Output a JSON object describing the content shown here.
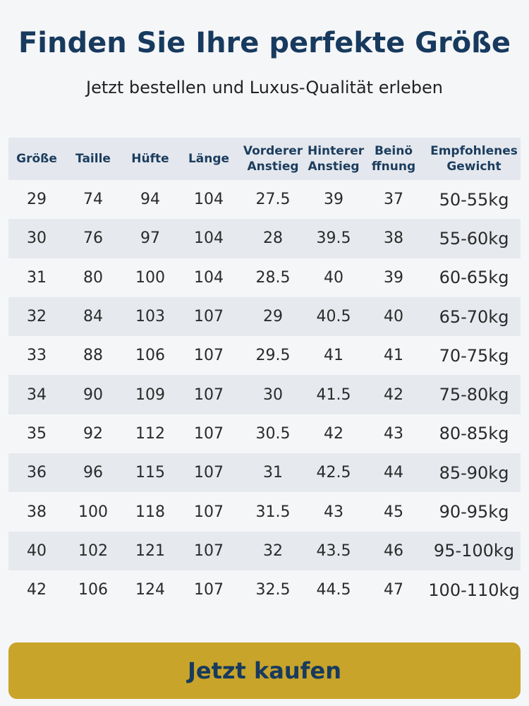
{
  "header": {
    "title": "Finden Sie Ihre perfekte Größe",
    "subtitle": "Jetzt bestellen und Luxus-Qualität erleben"
  },
  "table": {
    "columns": [
      [
        "Größe"
      ],
      [
        "Taille"
      ],
      [
        "Hüfte"
      ],
      [
        "Länge"
      ],
      [
        "Vorderer",
        "Anstieg"
      ],
      [
        "Hinterer",
        "Anstieg"
      ],
      [
        "Beinö",
        "ffnung"
      ],
      [
        "Empfohlenes",
        "Gewicht"
      ]
    ],
    "rows": [
      [
        "29",
        "74",
        "94",
        "104",
        "27.5",
        "39",
        "37",
        "50-55kg"
      ],
      [
        "30",
        "76",
        "97",
        "104",
        "28",
        "39.5",
        "38",
        "55-60kg"
      ],
      [
        "31",
        "80",
        "100",
        "104",
        "28.5",
        "40",
        "39",
        "60-65kg"
      ],
      [
        "32",
        "84",
        "103",
        "107",
        "29",
        "40.5",
        "40",
        "65-70kg"
      ],
      [
        "33",
        "88",
        "106",
        "107",
        "29.5",
        "41",
        "41",
        "70-75kg"
      ],
      [
        "34",
        "90",
        "109",
        "107",
        "30",
        "41.5",
        "42",
        "75-80kg"
      ],
      [
        "35",
        "92",
        "112",
        "107",
        "30.5",
        "42",
        "43",
        "80-85kg"
      ],
      [
        "36",
        "96",
        "115",
        "107",
        "31",
        "42.5",
        "44",
        "85-90kg"
      ],
      [
        "38",
        "100",
        "118",
        "107",
        "31.5",
        "43",
        "45",
        "90-95kg"
      ],
      [
        "40",
        "102",
        "121",
        "107",
        "32",
        "43.5",
        "46",
        "95-100kg"
      ],
      [
        "42",
        "106",
        "124",
        "107",
        "32.5",
        "44.5",
        "47",
        "100-110kg"
      ]
    ]
  },
  "button": {
    "label": "Jetzt kaufen"
  }
}
